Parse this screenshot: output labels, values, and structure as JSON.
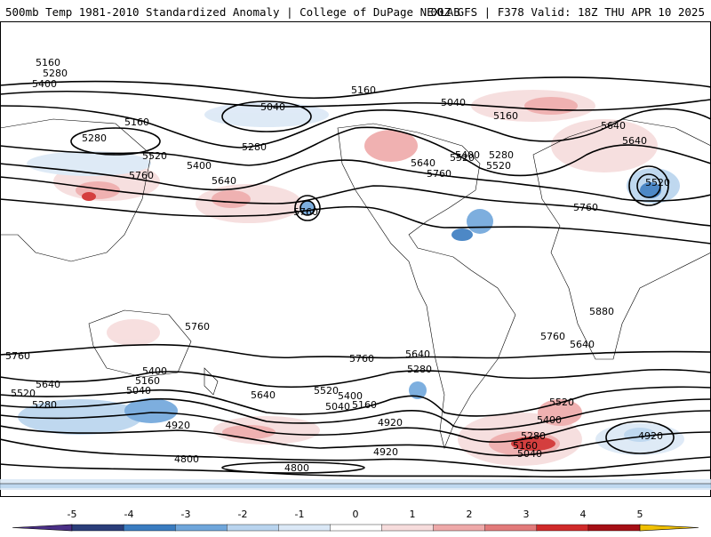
{
  "header": {
    "title_left": "500mb Temp 1981-2010 Standardized Anomaly | College of DuPage NEXLAB",
    "title_right": "00Z GFS | F378 Valid: 18Z THU APR 10 2025"
  },
  "contour_labels": [
    "5160",
    "5280",
    "5400",
    "5040",
    "5160",
    "5280",
    "5520",
    "5760",
    "5640",
    "5400",
    "5160",
    "5280",
    "5760",
    "5040",
    "5160",
    "5640",
    "5640",
    "5400",
    "5520",
    "5760",
    "5280",
    "5520",
    "5520",
    "5760",
    "5640",
    "5880",
    "5760",
    "5760",
    "5760",
    "5640",
    "5760",
    "5640",
    "5280",
    "5400",
    "5640",
    "5520",
    "5160",
    "5040",
    "5280",
    "5640",
    "5520",
    "5400",
    "5040",
    "5160",
    "4920",
    "4800",
    "4800",
    "4920",
    "4920",
    "5160",
    "5280",
    "5400",
    "5520",
    "5040",
    "4920"
  ],
  "colorbar": {
    "ticks": [
      "-5",
      "-4",
      "-3",
      "-2",
      "-1",
      "0",
      "1",
      "2",
      "3",
      "4",
      "5"
    ],
    "colors": [
      "#4a2f86",
      "#2b3e7a",
      "#3a7cc0",
      "#6fa6db",
      "#b9d4ee",
      "#dbe8f6",
      "#ffffff",
      "#f6dcdc",
      "#eea9a9",
      "#e27a7a",
      "#d02a2a",
      "#a50f15",
      "#f0c000"
    ]
  }
}
